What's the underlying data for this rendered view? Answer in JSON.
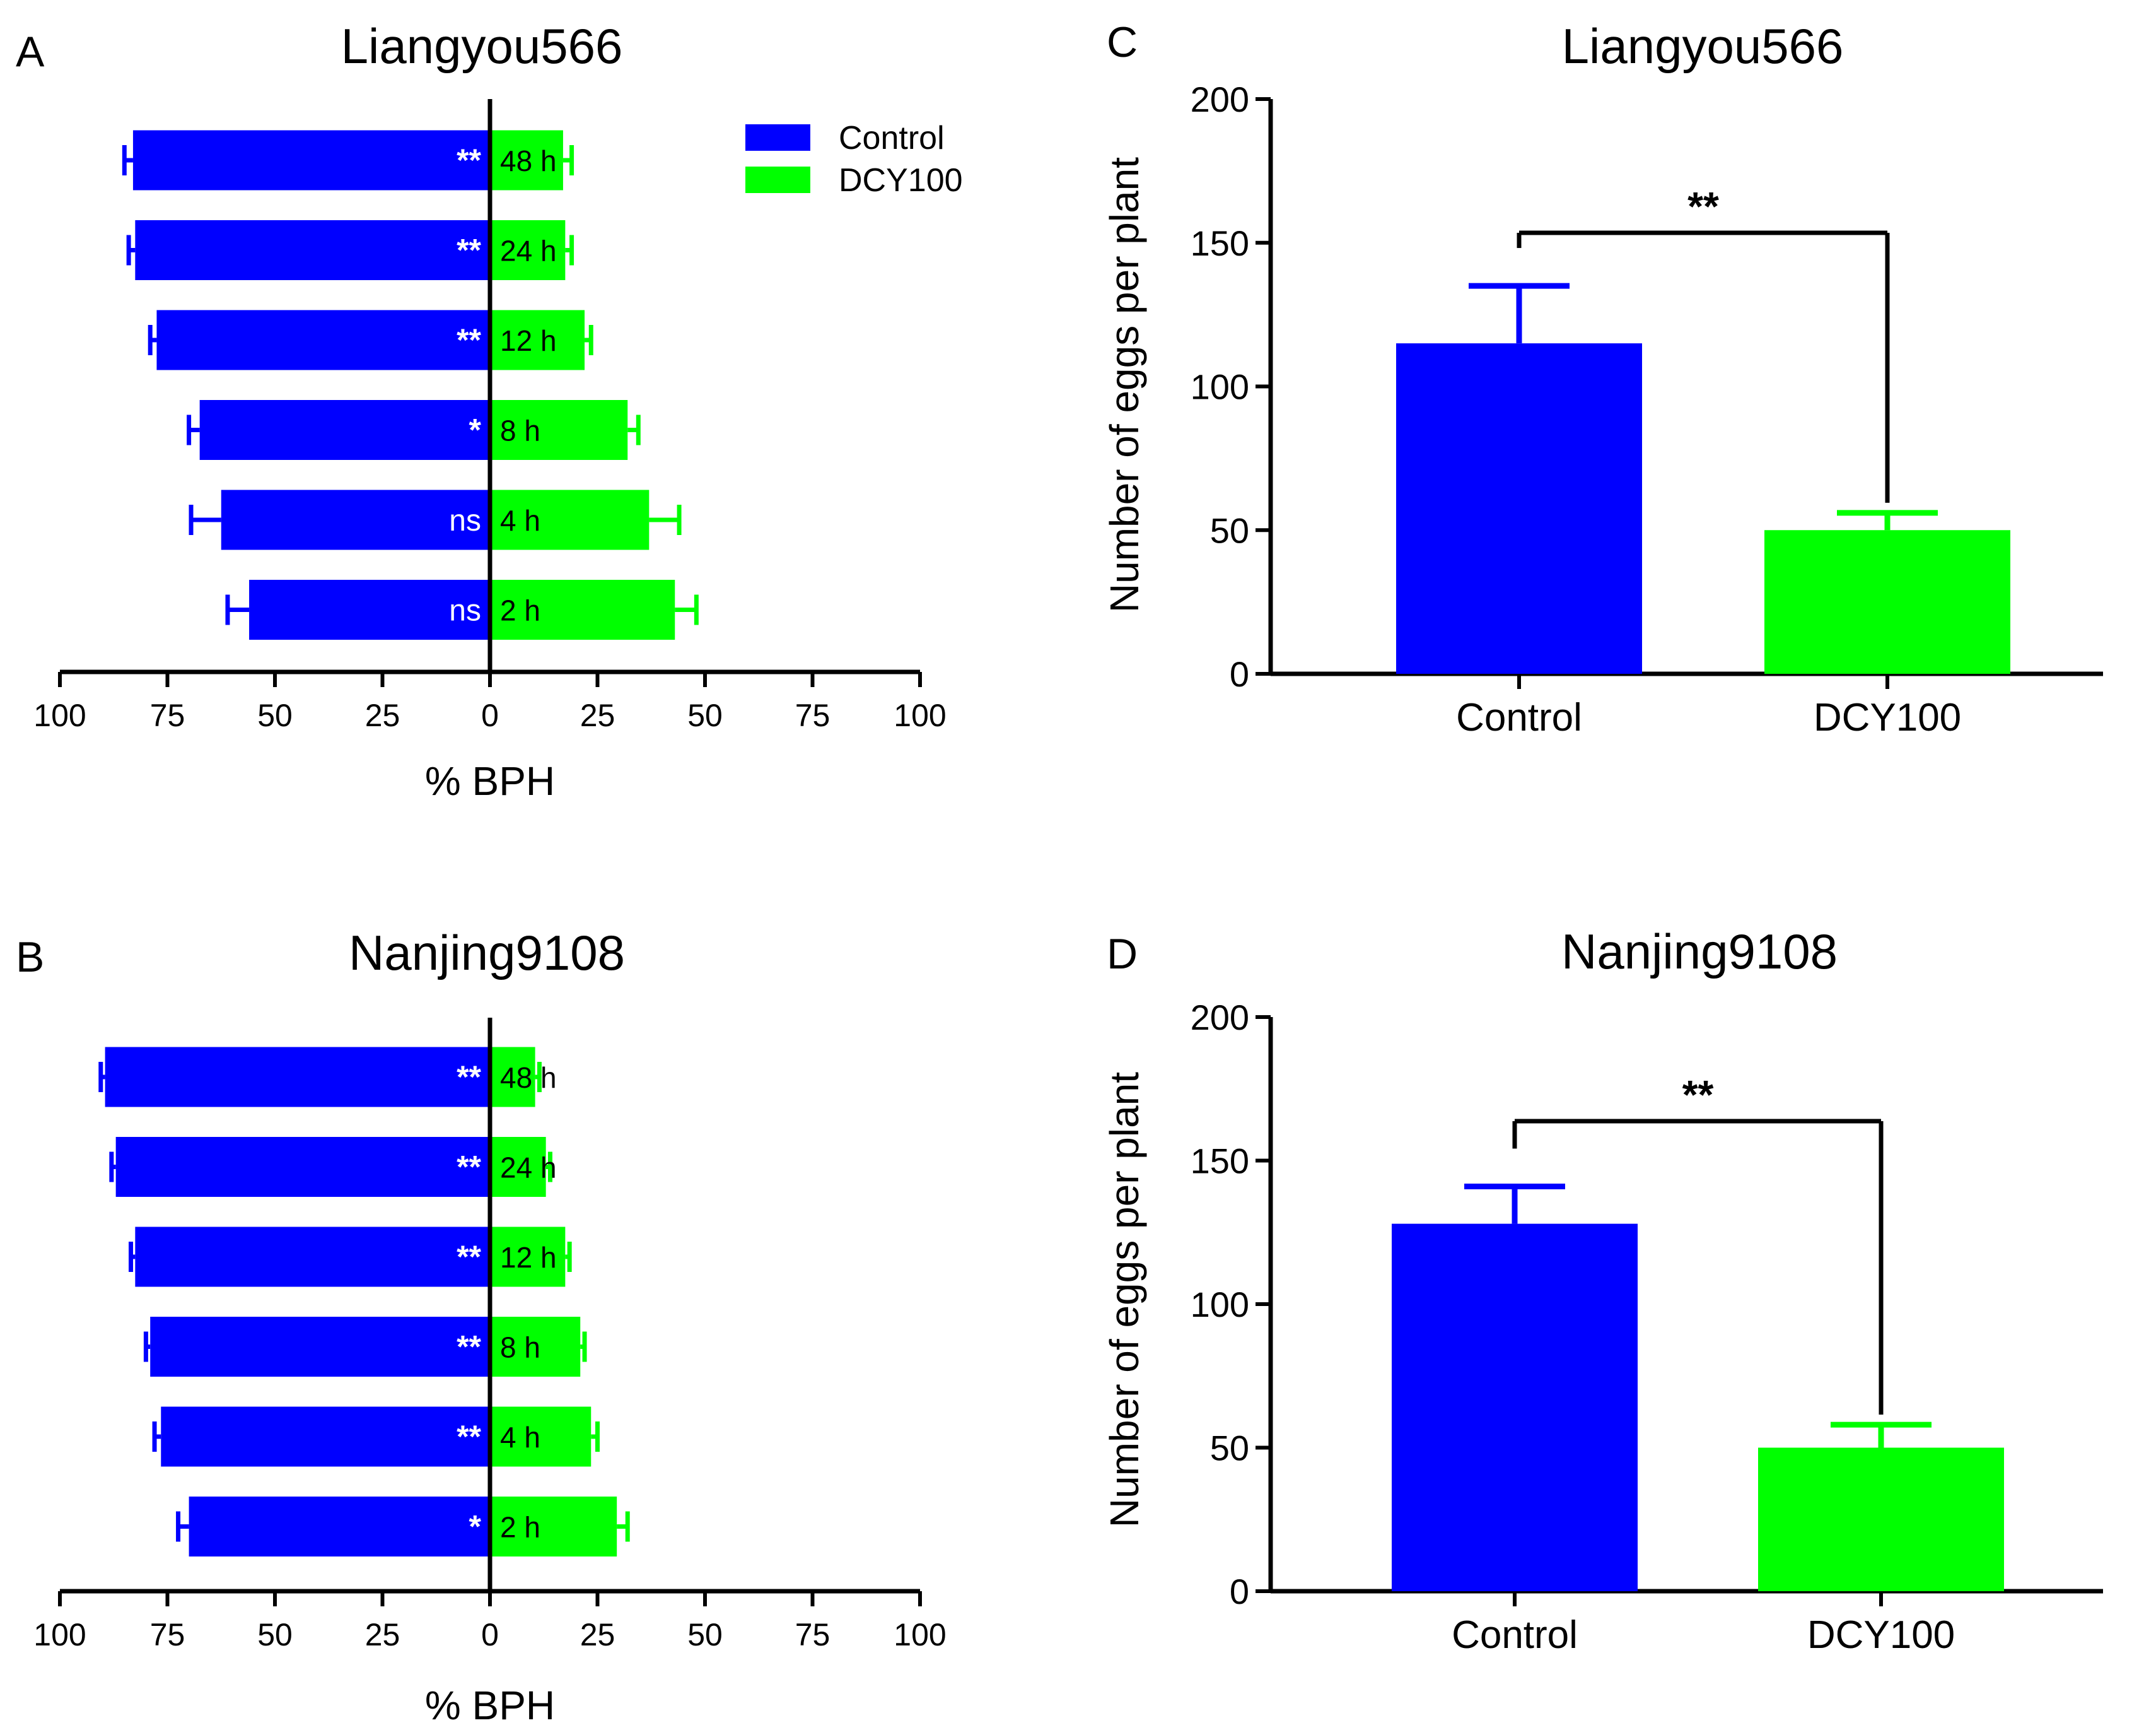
{
  "colors": {
    "control": "#0000ff",
    "dcy100": "#00ff00",
    "axis": "#000000"
  },
  "chart_data": [
    {
      "panel": "A",
      "type": "bar",
      "orientation": "horizontal-diverging",
      "title": "Liangyou566",
      "xlabel": "% BPH",
      "xlim": [
        -100,
        100
      ],
      "xticks": [
        "100",
        "75",
        "50",
        "25",
        "0",
        "25",
        "50",
        "75",
        "100"
      ],
      "categories": [
        "48 h",
        "24 h",
        "12 h",
        "8 h",
        "4 h",
        "2 h"
      ],
      "series": [
        {
          "name": "Control",
          "values": [
            83,
            82.5,
            77.5,
            67.5,
            62.5,
            56
          ],
          "errors": [
            2,
            1.5,
            1.5,
            2.5,
            7,
            5
          ]
        },
        {
          "name": "DCY100",
          "values": [
            17,
            17.5,
            22,
            32,
            37,
            43
          ],
          "errors": [
            2,
            1.5,
            1.5,
            2.5,
            7,
            5
          ]
        }
      ],
      "significance": [
        "**",
        "**",
        "**",
        "*",
        "ns",
        "ns"
      ],
      "legend": [
        "Control",
        "DCY100"
      ]
    },
    {
      "panel": "B",
      "type": "bar",
      "orientation": "horizontal-diverging",
      "title": "Nanjing9108",
      "xlabel": "% BPH",
      "xlim": [
        -100,
        100
      ],
      "xticks": [
        "100",
        "75",
        "50",
        "25",
        "0",
        "25",
        "50",
        "75",
        "100"
      ],
      "categories": [
        "48 h",
        "24 h",
        "12 h",
        "8 h",
        "4 h",
        "2 h"
      ],
      "series": [
        {
          "name": "Control",
          "values": [
            89.5,
            87,
            82.5,
            79,
            76.5,
            70
          ],
          "errors": [
            1,
            1,
            1,
            1,
            1.5,
            2.5
          ]
        },
        {
          "name": "DCY100",
          "values": [
            10.5,
            13,
            17.5,
            21,
            23.5,
            29.5
          ],
          "errors": [
            1,
            1,
            1,
            1,
            1.5,
            2.5
          ]
        }
      ],
      "significance": [
        "**",
        "**",
        "**",
        "**",
        "**",
        "*"
      ]
    },
    {
      "panel": "C",
      "type": "bar",
      "title": "Liangyou566",
      "ylabel": "Number of eggs per plant",
      "ylim": [
        0,
        200
      ],
      "yticks": [
        "0",
        "50",
        "100",
        "150",
        "200"
      ],
      "categories": [
        "Control",
        "DCY100"
      ],
      "values": [
        115,
        50
      ],
      "errors": [
        20,
        6
      ],
      "significance": "**"
    },
    {
      "panel": "D",
      "type": "bar",
      "title": "Nanjing9108",
      "ylabel": "Number of eggs per plant",
      "ylim": [
        0,
        200
      ],
      "yticks": [
        "0",
        "50",
        "100",
        "150",
        "200"
      ],
      "categories": [
        "Control",
        "DCY100"
      ],
      "values": [
        128,
        50
      ],
      "errors": [
        13,
        8
      ],
      "significance": "**"
    }
  ]
}
